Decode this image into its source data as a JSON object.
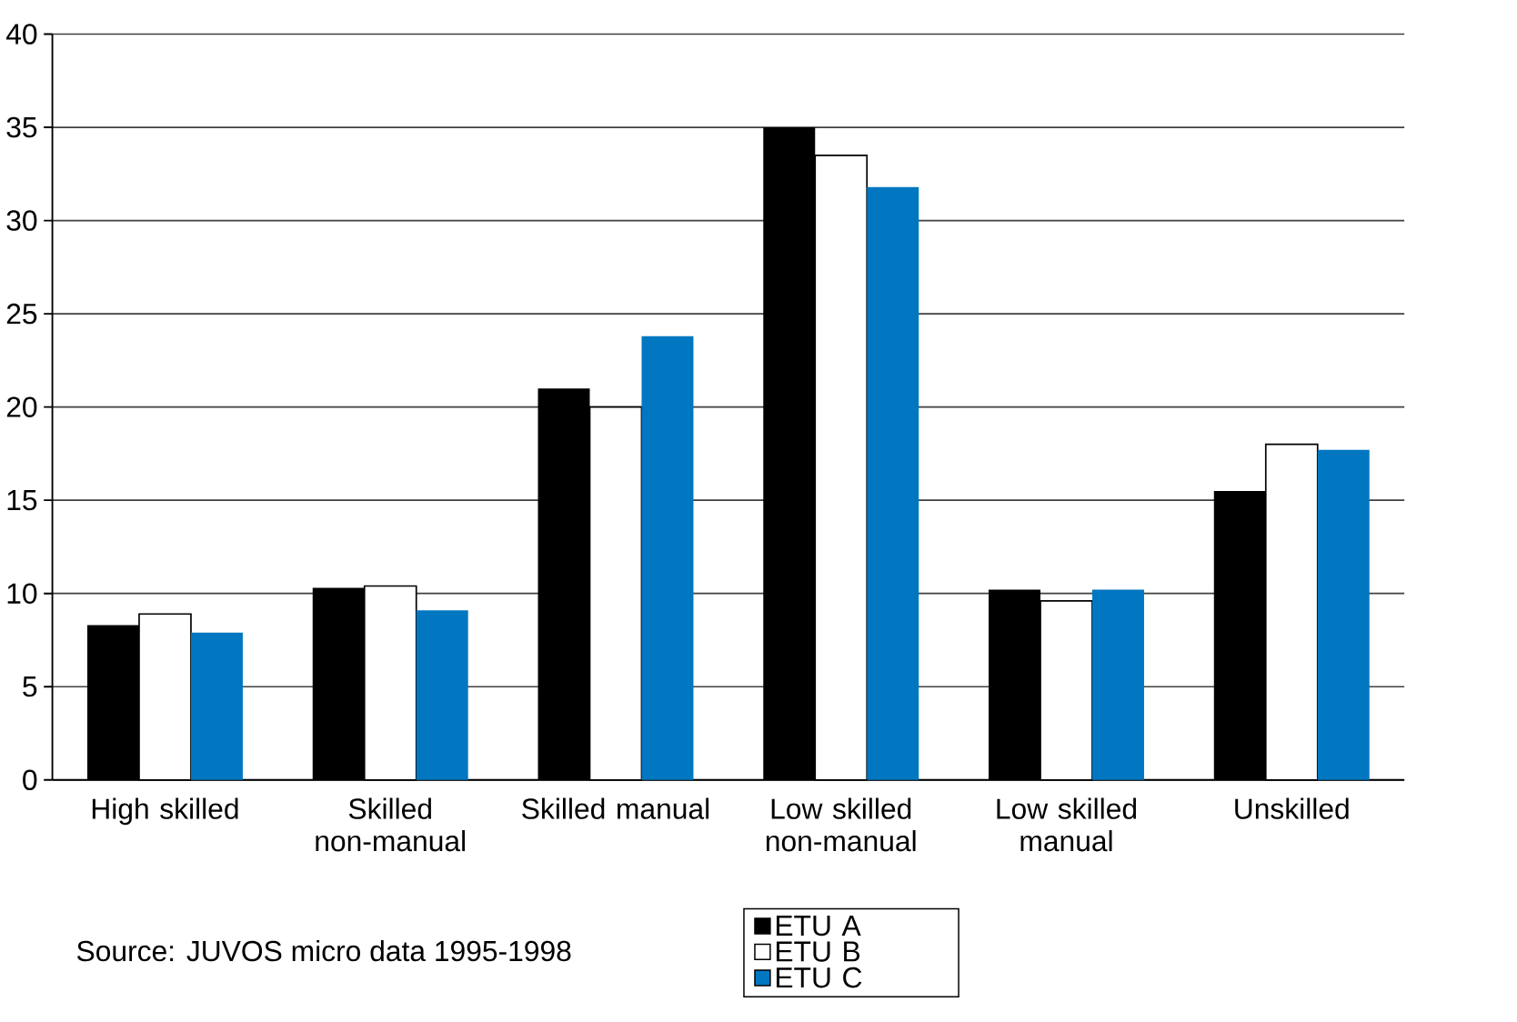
{
  "chart_data": {
    "type": "bar",
    "categories": [
      "High skilled",
      "Skilled non-manual",
      "Skilled manual",
      "Low skilled non-manual",
      "Low skilled manual",
      "Unskilled"
    ],
    "series": [
      {
        "name": "ETU A",
        "color": "#000000",
        "values": [
          8.3,
          10.3,
          21.0,
          35.0,
          10.2,
          15.5
        ]
      },
      {
        "name": "ETU B",
        "color": "#ffffff",
        "values": [
          8.9,
          10.4,
          20.0,
          33.5,
          9.6,
          18.0
        ]
      },
      {
        "name": "ETU C",
        "color": "#0077c0",
        "values": [
          7.9,
          9.1,
          23.8,
          31.8,
          10.2,
          17.7
        ]
      }
    ],
    "ylim": [
      0,
      40
    ],
    "yticks": [
      0,
      5,
      10,
      15,
      20,
      25,
      30,
      35,
      40
    ],
    "grid": "y",
    "legend": "bottom right",
    "annotations": [
      "Source: JUVOS micro data 1995-1998"
    ]
  }
}
